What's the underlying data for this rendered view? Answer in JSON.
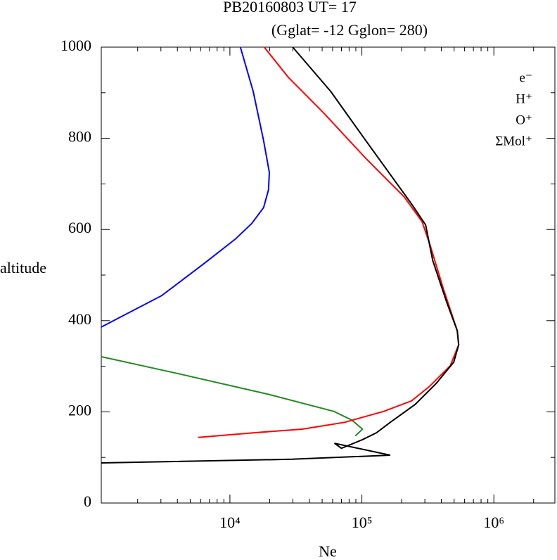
{
  "chart_data": {
    "type": "line",
    "title": "PB20160803   UT=  17",
    "subtitle": "(Gglat= -12   Gglon=  280)",
    "xlabel": "Ne",
    "ylabel": "altitude",
    "xscale": "log",
    "xlim": [
      1060,
      2900000
    ],
    "ylim": [
      0,
      1000
    ],
    "xticks": [
      {
        "value": 10000,
        "label": "10⁴"
      },
      {
        "value": 100000,
        "label": "10⁵"
      },
      {
        "value": 1000000,
        "label": "10⁶"
      }
    ],
    "xminorticks": [
      2000,
      3000,
      4000,
      5000,
      6000,
      7000,
      8000,
      9000,
      20000,
      30000,
      40000,
      50000,
      60000,
      70000,
      80000,
      90000,
      200000,
      300000,
      400000,
      500000,
      600000,
      700000,
      800000,
      900000,
      2000000
    ],
    "yticks": [
      0,
      200,
      400,
      600,
      800,
      1000
    ],
    "yminorticks": [
      100,
      300,
      500,
      700,
      900
    ],
    "legend": "upper right",
    "series": [
      {
        "name": "e⁻",
        "color": "#000000",
        "x": [
          29900,
          58000,
          107000,
          238000,
          304000,
          344000,
          440000,
          528000,
          541000,
          497000,
          365000,
          253000,
          164000,
          129000,
          101000,
          70000,
          62000,
          164000,
          29400,
          1060
        ],
        "y": [
          1000,
          903,
          795,
          656,
          610,
          532,
          440,
          378,
          347,
          309,
          262,
          216,
          177,
          154,
          139,
          120,
          131,
          105,
          96,
          88
        ]
      },
      {
        "name": "H⁺",
        "color": "#0000ff",
        "x": [
          12000,
          15000,
          18000,
          19900,
          19600,
          18000,
          14600,
          11000,
          6350,
          3040,
          1060
        ],
        "y": [
          1000,
          903,
          795,
          725,
          687,
          648,
          613,
          579,
          525,
          455,
          386
        ]
      },
      {
        "name": "O⁺",
        "color": "#ff0000",
        "x": [
          18200,
          27700,
          51200,
          107000,
          210000,
          286000,
          331000,
          413000,
          528000,
          541000,
          467000,
          323000,
          238000,
          146000,
          74000,
          35400,
          15000,
          5750
        ],
        "y": [
          1000,
          934,
          856,
          756,
          671,
          617,
          563,
          471,
          378,
          347,
          301,
          255,
          224,
          201,
          177,
          162,
          154,
          144
        ]
      },
      {
        "name": "ΣMol⁺",
        "color": "#228b22",
        "x": [
          1060,
          3880,
          19200,
          61500,
          83800,
          101000,
          89000
        ],
        "y": [
          321,
          285,
          239,
          201,
          182,
          162,
          147
        ]
      }
    ]
  }
}
